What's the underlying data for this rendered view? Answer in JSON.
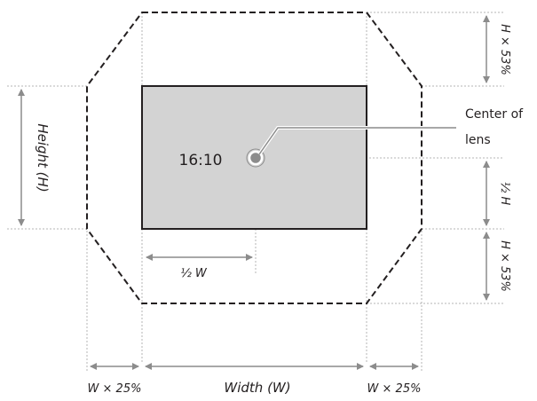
{
  "aspect_label": "16:10",
  "center_label_line1": "Center of",
  "center_label_line2": "lens",
  "labels": {
    "height": "Height (H)",
    "width": "Width (W)",
    "half_width": "½ W",
    "half_height": "½ H",
    "h_top": "H × 53%",
    "h_bottom": "H × 53%",
    "w_left": "W × 25%",
    "w_right": "W × 25%"
  },
  "colors": {
    "screen_fill": "#d3d3d3",
    "outline": "#231f20",
    "dim_line": "#8c8c8c",
    "guide_line": "#b4b4b4"
  }
}
